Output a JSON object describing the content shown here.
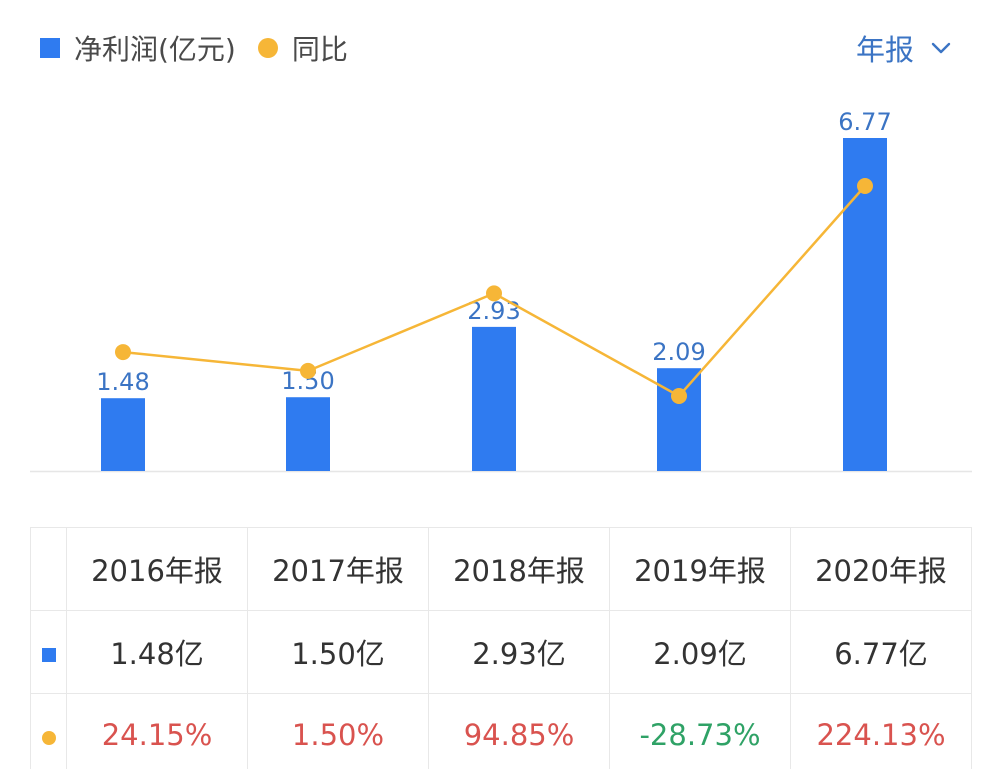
{
  "legend": {
    "profit_label": "净利润(亿元)",
    "yoy_label": "同比"
  },
  "period_selector": {
    "label": "年报"
  },
  "colors": {
    "bar": "#2f7bf0",
    "line": "#f6b637",
    "bar_label": "#3b74c4",
    "positive": "#d9534f",
    "negative": "#2fa266"
  },
  "chart_data": {
    "type": "bar",
    "categories": [
      "2016年报",
      "2017年报",
      "2018年报",
      "2019年报",
      "2020年报"
    ],
    "series": [
      {
        "name": "净利润(亿元)",
        "type": "bar",
        "values": [
          1.48,
          1.5,
          2.93,
          2.09,
          6.77
        ],
        "labels": [
          "1.48",
          "1.50",
          "2.93",
          "2.09",
          "6.77"
        ]
      },
      {
        "name": "同比",
        "type": "line",
        "values": [
          24.15,
          1.5,
          94.85,
          -28.73,
          224.13
        ]
      }
    ],
    "axes_visible": false,
    "grid": false
  },
  "table": {
    "headers": [
      "2016年报",
      "2017年报",
      "2018年报",
      "2019年报",
      "2020年报"
    ],
    "profit_row": [
      "1.48亿",
      "1.50亿",
      "2.93亿",
      "2.09亿",
      "6.77亿"
    ],
    "yoy_row": [
      "24.15%",
      "1.50%",
      "94.85%",
      "-28.73%",
      "224.13%"
    ]
  }
}
